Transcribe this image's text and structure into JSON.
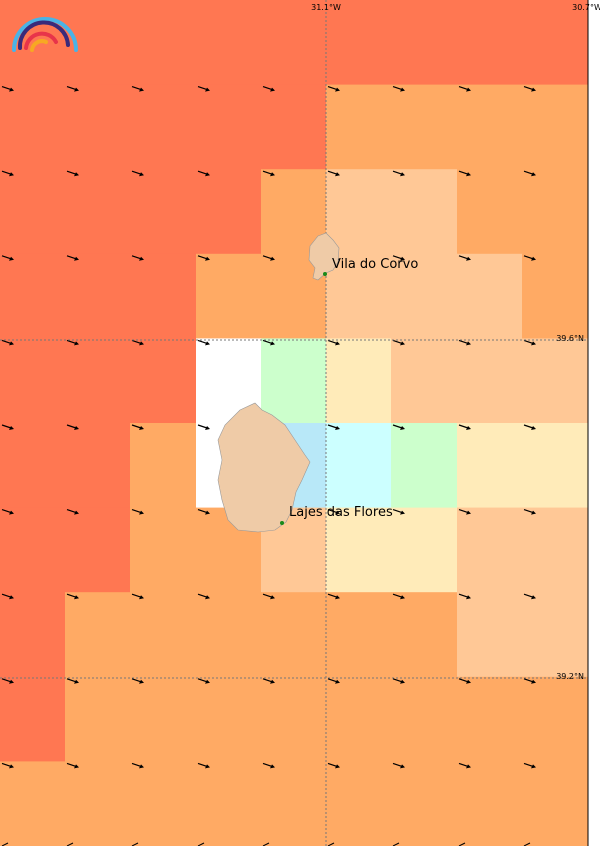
{
  "axes": {
    "lon_labels": [
      "31.1°W",
      "30.7°W"
    ],
    "lat_labels": [
      "39.6°N",
      "39.2°N"
    ]
  },
  "places": [
    {
      "label": "Vila do Corvo"
    },
    {
      "label": "Lajes das Flores"
    }
  ]
}
